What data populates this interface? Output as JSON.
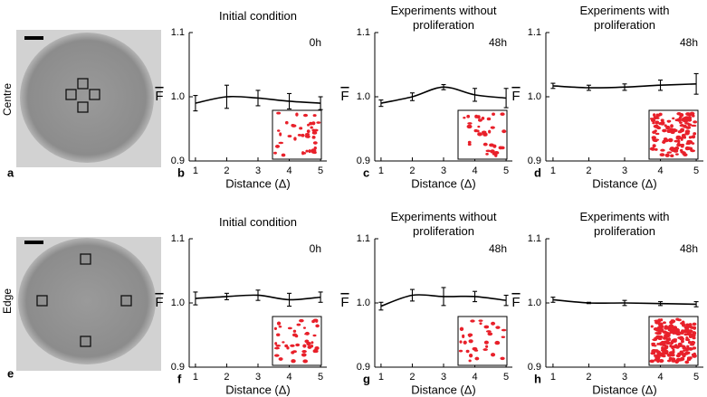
{
  "figure": {
    "image_panels": [
      {
        "label": "a",
        "row_label": "Centre"
      },
      {
        "label": "e",
        "row_label": "Edge"
      }
    ]
  },
  "chart_data": [
    {
      "type": "line",
      "panel_label": "b",
      "title": "Initial condition",
      "annotation": "0h",
      "xlabel": "Distance (Δ)",
      "ylabel": "F",
      "color": "#000000",
      "x": [
        1,
        2,
        3,
        4,
        5
      ],
      "values": [
        0.99,
        1.0,
        0.998,
        0.993,
        0.99
      ],
      "errors": [
        0.012,
        0.018,
        0.012,
        0.012,
        0.01
      ],
      "xlim": [
        0.8,
        5.2
      ],
      "xticks": [
        1,
        2,
        3,
        4,
        5
      ],
      "ylim": [
        0.9,
        1.1
      ],
      "yticks": [
        0.9,
        {
          "value": 1.0,
          "label": "1.0"
        },
        1.1
      ]
    },
    {
      "type": "line",
      "panel_label": "c",
      "title": "Experiments without proliferation",
      "annotation": "48h",
      "xlabel": "Distance (Δ)",
      "ylabel": "F",
      "color": "#000000",
      "x": [
        1,
        2,
        3,
        4,
        5
      ],
      "values": [
        0.99,
        1.0,
        1.015,
        1.003,
        0.998
      ],
      "errors": [
        0.005,
        0.006,
        0.004,
        0.01,
        0.015
      ],
      "xlim": [
        0.8,
        5.2
      ],
      "xticks": [
        1,
        2,
        3,
        4,
        5
      ],
      "ylim": [
        0.9,
        1.1
      ],
      "yticks": [
        0.9,
        {
          "value": 1.0,
          "label": "1.0"
        },
        1.1
      ]
    },
    {
      "type": "line",
      "panel_label": "d",
      "title": "Experiments with proliferation",
      "annotation": "48h",
      "xlabel": "Distance (Δ)",
      "ylabel": "F",
      "color": "#000000",
      "x": [
        1,
        2,
        3,
        4,
        5
      ],
      "values": [
        1.017,
        1.014,
        1.015,
        1.018,
        1.02
      ],
      "errors": [
        0.004,
        0.004,
        0.005,
        0.008,
        0.016
      ],
      "xlim": [
        0.8,
        5.2
      ],
      "xticks": [
        1,
        2,
        3,
        4,
        5
      ],
      "ylim": [
        0.9,
        1.1
      ],
      "yticks": [
        0.9,
        {
          "value": 1.0,
          "label": "1.0"
        },
        1.1
      ]
    },
    {
      "type": "line",
      "panel_label": "f",
      "title": "Initial condition",
      "annotation": "0h",
      "xlabel": "Distance (Δ)",
      "ylabel": "F",
      "color": "#000000",
      "x": [
        1,
        2,
        3,
        4,
        5
      ],
      "values": [
        1.007,
        1.01,
        1.012,
        1.005,
        1.009
      ],
      "errors": [
        0.01,
        0.005,
        0.008,
        0.01,
        0.008
      ],
      "xlim": [
        0.8,
        5.2
      ],
      "xticks": [
        1,
        2,
        3,
        4,
        5
      ],
      "ylim": [
        0.9,
        1.1
      ],
      "yticks": [
        0.9,
        {
          "value": 1.0,
          "label": "1.0"
        },
        1.1
      ]
    },
    {
      "type": "line",
      "panel_label": "g",
      "title": "Experiments without proliferation",
      "annotation": "48h",
      "xlabel": "Distance (Δ)",
      "ylabel": "F",
      "color": "#000000",
      "x": [
        1,
        2,
        3,
        4,
        5
      ],
      "values": [
        0.995,
        1.012,
        1.01,
        1.01,
        1.004
      ],
      "errors": [
        0.006,
        0.009,
        0.014,
        0.008,
        0.008
      ],
      "xlim": [
        0.8,
        5.2
      ],
      "xticks": [
        1,
        2,
        3,
        4,
        5
      ],
      "ylim": [
        0.9,
        1.1
      ],
      "yticks": [
        0.9,
        {
          "value": 1.0,
          "label": "1.0"
        },
        1.1
      ]
    },
    {
      "type": "line",
      "panel_label": "h",
      "title": "Experiments with proliferation",
      "annotation": "48h",
      "xlabel": "Distance (Δ)",
      "ylabel": "F",
      "color": "#000000",
      "x": [
        1,
        2,
        3,
        4,
        5
      ],
      "values": [
        1.005,
        1.0,
        1.0,
        0.999,
        0.998
      ],
      "errors": [
        0.004,
        0.001,
        0.004,
        0.003,
        0.004
      ],
      "xlim": [
        0.8,
        5.2
      ],
      "xticks": [
        1,
        2,
        3,
        4,
        5
      ],
      "ylim": [
        0.9,
        1.1
      ],
      "yticks": [
        0.9,
        {
          "value": 1.0,
          "label": "1.0"
        },
        1.1
      ]
    }
  ]
}
